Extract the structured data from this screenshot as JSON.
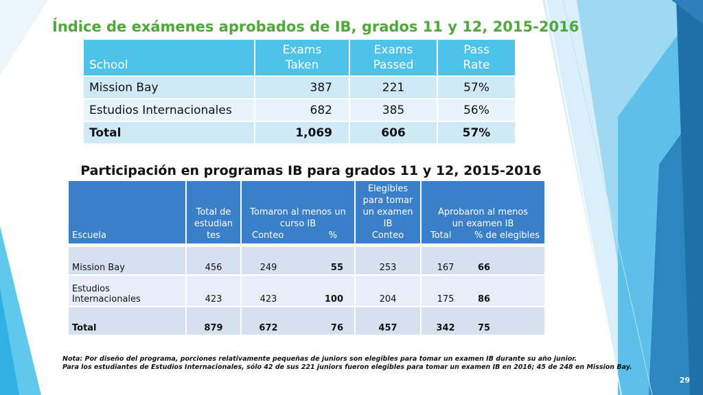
{
  "slide": {
    "title": "Índice de exámenes aprobados de IB, grados 11 y 12, 2015-2016",
    "page_number": "29"
  },
  "exam_table": {
    "headers": {
      "school": "School",
      "exams_taken_1": "Exams",
      "exams_taken_2": "Taken",
      "exams_passed_1": "Exams",
      "exams_passed_2": "Passed",
      "pass_rate_1": "Pass",
      "pass_rate_2": "Rate"
    },
    "rows": [
      {
        "school": "Mission Bay",
        "taken": "387",
        "passed": "221",
        "rate": "57%"
      },
      {
        "school": "Estudios Internacionales",
        "taken": "682",
        "passed": "385",
        "rate": "56%"
      },
      {
        "school": "Total",
        "taken": "1,069",
        "passed": "606",
        "rate": "57%"
      }
    ]
  },
  "participation": {
    "title": "Participación en programas IB para grados 11 y 12, 2015-2016",
    "headers": {
      "escuela": "Escuela",
      "total_1": "Total de",
      "total_2": "estudian",
      "total_3": "tes",
      "tomaron_1": "Tomaron al menos un",
      "tomaron_2": "curso IB",
      "tomaron_conteo": "Conteo",
      "tomaron_pct": "%",
      "elegibles_1": "Elegibles",
      "elegibles_2": "para tomar",
      "elegibles_3": "un examen",
      "elegibles_4": "IB",
      "elegibles_conteo": "Conteo",
      "aprobaron_1": "Aprobaron al menos",
      "aprobaron_2": "un examen IB",
      "aprobaron_total": "Total",
      "aprobaron_pct": "% de elegibles"
    },
    "rows": [
      {
        "escuela_1": "Mission Bay",
        "escuela_2": "",
        "total": "456",
        "conteo": "249",
        "pct": "55",
        "elegibles": "253",
        "aprob_total": "167",
        "aprob_pct": "66"
      },
      {
        "escuela_1": "Estudios",
        "escuela_2": "Internacionales",
        "total": "423",
        "conteo": "423",
        "pct": "100",
        "elegibles": "204",
        "aprob_total": "175",
        "aprob_pct": "86"
      },
      {
        "escuela_1": "Total",
        "escuela_2": "",
        "total": "879",
        "conteo": "672",
        "pct": "76",
        "elegibles": "457",
        "aprob_total": "342",
        "aprob_pct": "75"
      }
    ]
  },
  "notes": {
    "line1": "Nota: Por diseño del programa, porciones relativamente pequeñas de juniors son elegibles para tomar un examen IB durante su año junior.",
    "line2": "Para los estudiantes de Estudios Internacionales, sólo 42 de sus 221 juniors fueron elegibles para tomar un examen IB en 2016; 45 de 248 en Mission Bay."
  },
  "colors": {
    "title_green": "#4fa83a",
    "table1_header": "#4dc3ea",
    "table2_header": "#3b7fc9"
  }
}
